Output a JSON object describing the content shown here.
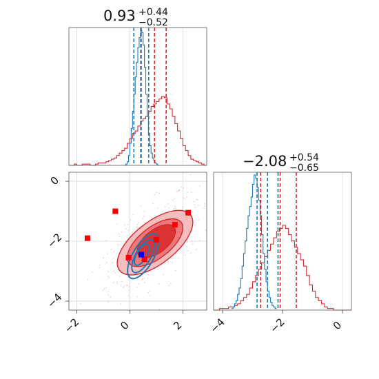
{
  "chart_data": {
    "type": "corner",
    "colors": {
      "series_a": "#d62728",
      "series_b": "#1f77b4",
      "highlight": "#ff0000",
      "marker": "#0000ff",
      "scatter": "#f4a6c6"
    },
    "panels": [
      {
        "id": "hist-param1",
        "type": "histogram",
        "title": {
          "value": "0.93",
          "plus": "+0.44",
          "minus": "−0.52"
        },
        "xlim": [
          -2.3,
          2.9
        ],
        "quantiles": {
          "red": [
            0.41,
            0.93,
            1.37
          ],
          "blue": [
            0.15,
            0.43,
            0.71
          ]
        },
        "series": [
          {
            "name": "",
            "color": "#d62728",
            "bin_start": -2.3,
            "bin_width": 0.1,
            "counts": [
              0,
              0,
              1,
              0,
              0,
              1,
              1,
              1,
              0,
              0,
              1,
              2,
              2,
              2,
              3,
              4,
              5,
              6,
              8,
              10,
              12,
              14,
              18,
              22,
              26,
              28,
              32,
              36,
              38,
              40,
              44,
              48,
              50,
              52,
              54,
              56,
              55,
              50,
              46,
              40,
              34,
              28,
              22,
              16,
              12,
              8,
              5,
              4,
              3,
              2,
              1,
              0
            ]
          },
          {
            "name": "",
            "color": "#1f77b4",
            "bin_start": -0.2,
            "bin_width": 0.05,
            "counts": [
              0,
              1,
              3,
              8,
              18,
              30,
              44,
              58,
              72,
              84,
              96,
              104,
              110,
              108,
              98,
              80,
              58,
              40,
              26,
              16,
              10,
              6,
              4,
              2,
              1,
              0
            ]
          }
        ]
      },
      {
        "id": "hist-param2",
        "type": "histogram",
        "title": {
          "value": "−2.08",
          "plus": "+0.54",
          "minus": "−0.65"
        },
        "xlim": [
          -4.3,
          0.3
        ],
        "xticks": [
          -4,
          -2,
          0
        ],
        "xtick_labels": [
          "−4",
          "−2",
          "0"
        ],
        "quantiles": {
          "red": [
            -2.73,
            -2.08,
            -1.54
          ],
          "blue": [
            -2.85,
            -2.5,
            -2.15
          ]
        },
        "series": [
          {
            "name": "",
            "color": "#d62728",
            "bin_start": -4.3,
            "bin_width": 0.1,
            "counts": [
              0,
              0,
              1,
              1,
              1,
              2,
              2,
              3,
              4,
              6,
              8,
              10,
              14,
              18,
              22,
              26,
              30,
              34,
              38,
              42,
              46,
              50,
              52,
              54,
              52,
              48,
              44,
              40,
              36,
              32,
              28,
              22,
              16,
              12,
              8,
              6,
              4,
              2,
              1,
              1,
              0,
              0,
              0,
              0,
              0,
              0
            ]
          },
          {
            "name": "",
            "color": "#1f77b4",
            "bin_start": -3.7,
            "bin_width": 0.05,
            "counts": [
              1,
              2,
              4,
              6,
              10,
              14,
              20,
              28,
              36,
              44,
              52,
              60,
              66,
              72,
              80,
              86,
              84,
              78,
              70,
              60,
              48,
              36,
              26,
              18,
              12,
              8,
              5,
              3,
              2,
              1
            ]
          }
        ]
      },
      {
        "id": "joint",
        "type": "contour",
        "xlim": [
          -2.3,
          2.9
        ],
        "ylim": [
          -4.3,
          0.3
        ],
        "xticks": [
          -2,
          0,
          2
        ],
        "xtick_labels": [
          "−2",
          "0",
          "2"
        ],
        "yticks": [
          -4,
          -2,
          0
        ],
        "ytick_labels": [
          "−4",
          "−2",
          "0"
        ],
        "red_contours": [
          {
            "level": 1,
            "cx": 0.95,
            "cy": -2.05,
            "rx": 1.7,
            "ry": 0.7,
            "angle": 38
          },
          {
            "level": 2,
            "cx": 0.95,
            "cy": -2.05,
            "rx": 1.25,
            "ry": 0.52,
            "angle": 38
          },
          {
            "level": 3,
            "cx": 1.0,
            "cy": -2.0,
            "rx": 0.85,
            "ry": 0.38,
            "angle": 38
          }
        ],
        "blue_contours": [
          {
            "cx": 0.5,
            "cy": -2.5,
            "rx": 0.95,
            "ry": 0.35,
            "angle": 60
          },
          {
            "cx": 0.5,
            "cy": -2.5,
            "rx": 0.7,
            "ry": 0.25,
            "angle": 60
          },
          {
            "cx": 0.45,
            "cy": -2.45,
            "rx": 0.45,
            "ry": 0.17,
            "angle": 60
          }
        ],
        "red_markers": [
          {
            "x": -1.6,
            "y": -1.9
          },
          {
            "x": -0.55,
            "y": -1.0
          },
          {
            "x": 2.2,
            "y": -1.05
          },
          {
            "x": 1.7,
            "y": -1.45
          },
          {
            "x": 1.0,
            "y": -1.95
          },
          {
            "x": -0.05,
            "y": -2.55
          },
          {
            "x": 0.55,
            "y": -2.6
          }
        ],
        "blue_marker": {
          "x": 0.43,
          "y": -2.45
        }
      }
    ]
  }
}
